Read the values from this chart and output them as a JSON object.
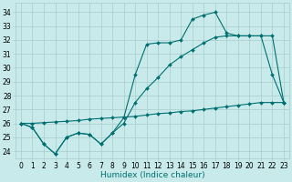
{
  "xlabel": "Humidex (Indice chaleur)",
  "background_color": "#c8eaea",
  "grid_color": "#a8cccc",
  "line_color": "#007070",
  "x_ticks": [
    0,
    1,
    2,
    3,
    4,
    5,
    6,
    7,
    8,
    9,
    10,
    11,
    12,
    13,
    14,
    15,
    16,
    17,
    18,
    19,
    20,
    21,
    22,
    23
  ],
  "ylim": [
    23.5,
    34.7
  ],
  "xlim": [
    -0.5,
    23.5
  ],
  "y_ticks": [
    24,
    25,
    26,
    27,
    28,
    29,
    30,
    31,
    32,
    33,
    34
  ],
  "line1_y": [
    26.0,
    25.7,
    24.5,
    23.8,
    25.0,
    25.3,
    25.2,
    24.5,
    25.3,
    26.4,
    29.5,
    31.7,
    31.8,
    31.8,
    32.0,
    33.5,
    33.8,
    34.0,
    32.5,
    32.3,
    32.3,
    32.3,
    29.5,
    27.5
  ],
  "line2_y": [
    26.0,
    25.7,
    24.5,
    23.8,
    25.0,
    25.3,
    25.2,
    24.5,
    25.3,
    26.0,
    27.5,
    28.5,
    29.3,
    30.2,
    30.8,
    31.3,
    31.8,
    32.2,
    32.3,
    32.3,
    32.3,
    32.3,
    32.3,
    27.5
  ],
  "line3_y": [
    26.0,
    26.0,
    26.05,
    26.1,
    26.15,
    26.2,
    26.3,
    26.35,
    26.4,
    26.45,
    26.5,
    26.6,
    26.7,
    26.75,
    26.85,
    26.9,
    27.0,
    27.1,
    27.2,
    27.3,
    27.4,
    27.5,
    27.5,
    27.5
  ],
  "markersize": 2.0,
  "linewidth": 0.8,
  "tick_fontsize": 5.5,
  "label_fontsize": 6.5
}
